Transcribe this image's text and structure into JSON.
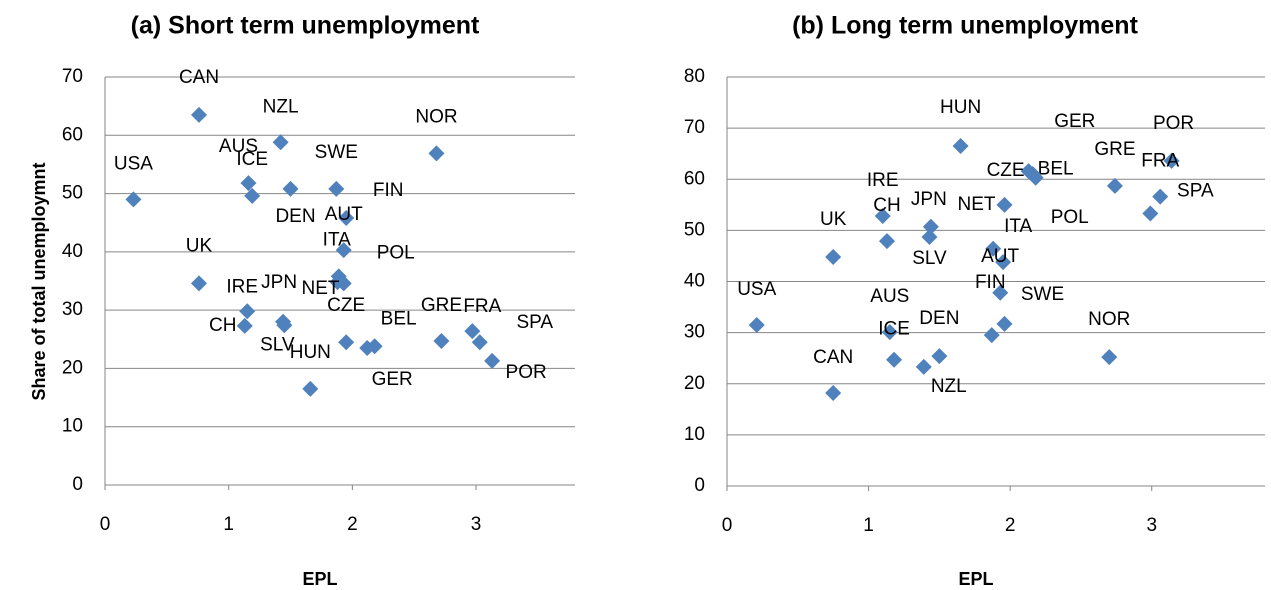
{
  "chart_data": [
    {
      "type": "scatter",
      "title": "(a) Short term unemployment",
      "xlabel": "EPL",
      "ylabel": "Share of total unemployment",
      "labels": [
        "CAN",
        "NZL",
        "AUS",
        "ICE",
        "USA",
        "DEN",
        "SWE",
        "NOR",
        "FIN",
        "AUT",
        "ITA",
        "POL",
        "NET",
        "UK",
        "IRE",
        "JPN",
        "CH",
        "SLV",
        "CZE",
        "BEL",
        "GER",
        "GRE",
        "FRA",
        "SPA",
        "POR",
        "HUN"
      ],
      "x": [
        0.76,
        1.42,
        1.16,
        1.19,
        0.23,
        1.5,
        1.87,
        2.68,
        1.95,
        1.93,
        1.89,
        1.93,
        1.88,
        0.76,
        1.15,
        1.44,
        1.13,
        1.45,
        1.95,
        2.18,
        2.12,
        2.72,
        2.97,
        3.03,
        3.13,
        1.66
      ],
      "y": [
        63.5,
        58.8,
        51.8,
        49.6,
        49,
        50.8,
        50.8,
        56.9,
        45.8,
        40.3,
        35.8,
        34.6,
        34.8,
        34.6,
        29.8,
        28,
        27.3,
        27.4,
        24.5,
        23.8,
        23.5,
        24.7,
        26.4,
        24.5,
        21.3,
        16.5
      ],
      "color": "#4f81bd",
      "xlim": [
        0,
        3.8
      ],
      "ylim": [
        0,
        70
      ],
      "xticks": [
        0,
        1,
        2,
        3
      ],
      "yticks": [
        0,
        10,
        20,
        30,
        40,
        50,
        60,
        70
      ],
      "grid": true
    },
    {
      "type": "scatter",
      "title": "(b) Long term unemployment",
      "xlabel": "EPL",
      "ylabel": "Share of total unemploymnt",
      "labels": [
        "USA",
        "UK",
        "CAN",
        "IRE",
        "CH",
        "AUS",
        "ICE",
        "JPN",
        "SLV",
        "NZL",
        "DEN",
        "HUN",
        "NET",
        "ITA",
        "AUT",
        "FIN",
        "SWE",
        "POL",
        "CZE",
        "BEL",
        "GER",
        "GRE",
        "POR",
        "FRA",
        "SPA",
        "NOR"
      ],
      "x": [
        0.21,
        0.75,
        0.75,
        1.1,
        1.13,
        1.15,
        1.18,
        1.44,
        1.43,
        1.39,
        1.5,
        1.65,
        1.96,
        1.88,
        1.95,
        1.93,
        1.96,
        1.87,
        2.13,
        2.18,
        2.16,
        2.74,
        3.14,
        3.06,
        2.99,
        2.7
      ],
      "y": [
        31.5,
        44.8,
        18.2,
        52.8,
        47.9,
        30.1,
        24.7,
        50.7,
        48.7,
        23.3,
        25.4,
        66.5,
        55,
        46.4,
        43.8,
        37.8,
        31.7,
        29.5,
        61.6,
        60.3,
        61,
        58.7,
        63.6,
        56.6,
        53.3,
        25.2
      ],
      "color": "#4f81bd",
      "xlim": [
        0,
        3.8
      ],
      "ylim": [
        0,
        80
      ],
      "xticks": [
        0,
        1,
        2,
        3
      ],
      "yticks": [
        0,
        10,
        20,
        30,
        40,
        50,
        60,
        70,
        80
      ],
      "grid": true
    }
  ]
}
